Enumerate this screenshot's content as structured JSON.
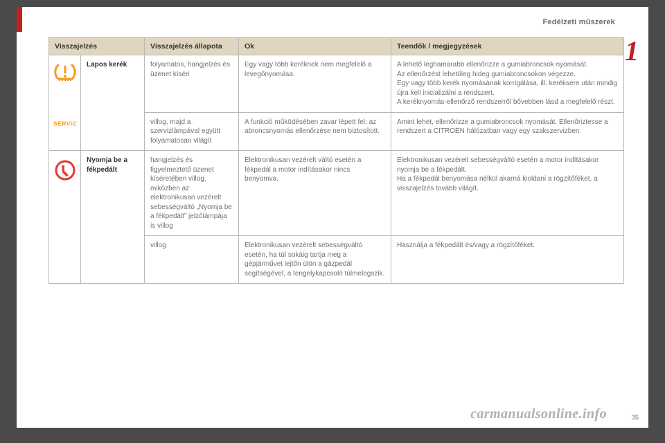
{
  "header": {
    "section_title": "Fedélzeti műszerek",
    "chapter_number": "1"
  },
  "colors": {
    "accent_red": "#c3201f",
    "header_bg": "#e0d6c0",
    "border": "#b8b8b8",
    "body_text": "#707070",
    "icon_orange": "#f59a1d",
    "icon_red": "#e23a2e"
  },
  "table": {
    "columns": [
      "Visszajelzés",
      "Visszajelzés állapota",
      "Ok",
      "Teendők / megjegyzések"
    ],
    "groups": [
      {
        "name": "Lapos kerék",
        "icon_stack": [
          "tpms",
          "service"
        ],
        "rows": [
          {
            "state": "folyamatos, hangjelzés és üzenet kíséri",
            "cause": "Egy vagy több keréknek nem megfelelő a levegőnyomása.",
            "action": "A lehető leghamarabb ellenőrizze a gumiabroncsok nyomását.\nAz ellenőrzést lehetőleg hideg gumiabroncsokon végezze.\nEgy vagy több kerék nyomásának korrigálása, ill. keréksere után mindig újra kell inicializálni a rendszert.\nA keréknyomás-ellenőrző rendszerről bővebben lásd a megfelelő részt."
          },
          {
            "state": "villog, majd a szervizlámpával együtt folyamatosan világít",
            "cause": "A funkció működésében zavar lépett fel: az abroncsnyomás ellenőrzése nem biztosított.",
            "action": "Amint lehet, ellenőrizze a gumiabroncsok nyomását. Ellenőriztesse a rendszert a CITROËN hálózatban vagy egy szakszervizben."
          }
        ]
      },
      {
        "name": "Nyomja be a fékpedált",
        "icon_stack": [
          "brakefoot"
        ],
        "rows": [
          {
            "state": "hangjelzés és figyelmeztető üzenet kíséretében villog, miközben az elektronikusan vezérelt sebességváltó „Nyomja be a fékpedált” jelzőlámpája is villog",
            "cause": "Elektronikusan vezérelt váltó esetén a fékpedál a motor indításakor nincs benyomva.",
            "action": "Elektronikusan vezérelt sebességváltó esetén a motor indításakor nyomja be a fékpedált.\nHa a fékpedál benyomása nélkül akarná kioldani a rögzítőféket, a visszajelzés tovább világít."
          },
          {
            "state": "villog",
            "cause": "Elektronikusan vezérelt sebességváltó esetén, ha túl sokáig tartja meg a gépjárművet lejtőn ülön a gázpedál segítségével, a tengelykapcsoló túlmelegszik.",
            "action": "Használja a fékpedált és/vagy a rögzítőféket."
          }
        ]
      }
    ]
  },
  "footer": {
    "watermark": "carmanualsonline.info",
    "page_number": "35"
  }
}
